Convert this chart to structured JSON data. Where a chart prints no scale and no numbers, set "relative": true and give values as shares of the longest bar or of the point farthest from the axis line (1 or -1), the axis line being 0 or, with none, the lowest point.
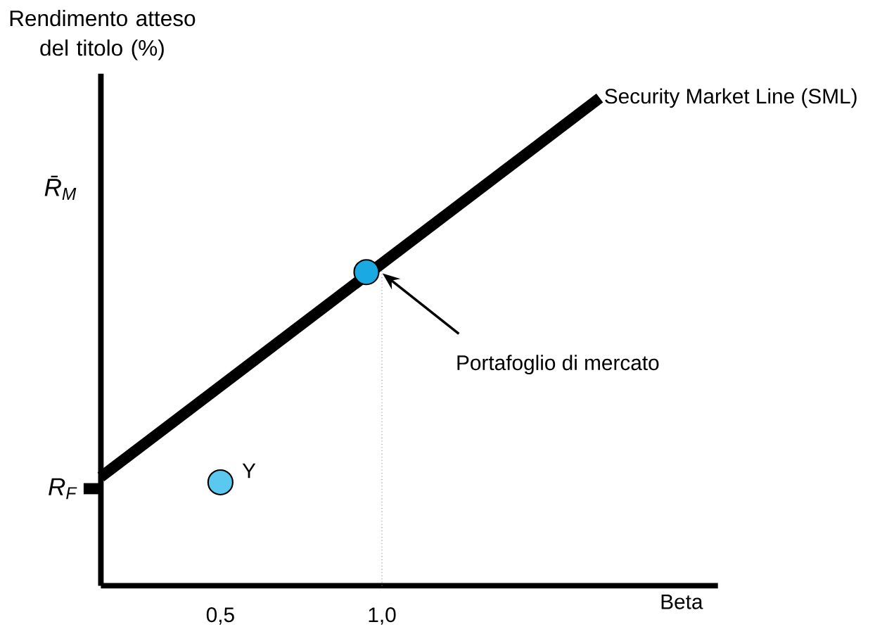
{
  "chart_data": {
    "type": "line",
    "relative": true,
    "xlabel": "Beta",
    "ylabel": "Rendimento atteso del titolo (%)",
    "xlim": [
      0.13,
      2.04
    ],
    "xticks": [
      {
        "value": 0.5,
        "label": "0,5"
      },
      {
        "value": 1.0,
        "label": "1,0"
      }
    ],
    "series": [
      {
        "name": "Security Market Line (SML)",
        "color": "#000000",
        "x": [
          0.13,
          1.674
        ],
        "values": [
          0.223,
          1
        ]
      },
      {
        "type": "scatter",
        "marker": "circle",
        "color": "#1ba9e1",
        "x": [
          0.952
        ],
        "values": [
          0.643
        ]
      },
      {
        "name": "Y",
        "type": "scatter",
        "marker": "circle",
        "color": "#5bc8f0",
        "x": [
          0.5
        ],
        "values": [
          0.212
        ]
      }
    ],
    "ref_lines": [
      {
        "axis": "x",
        "value": 1.0,
        "line_style": "dotted"
      }
    ],
    "annotations": [
      "Portafoglio di mercato",
      "*R*$_{F}$",
      "*R̄*$_{M}$"
    ]
  }
}
